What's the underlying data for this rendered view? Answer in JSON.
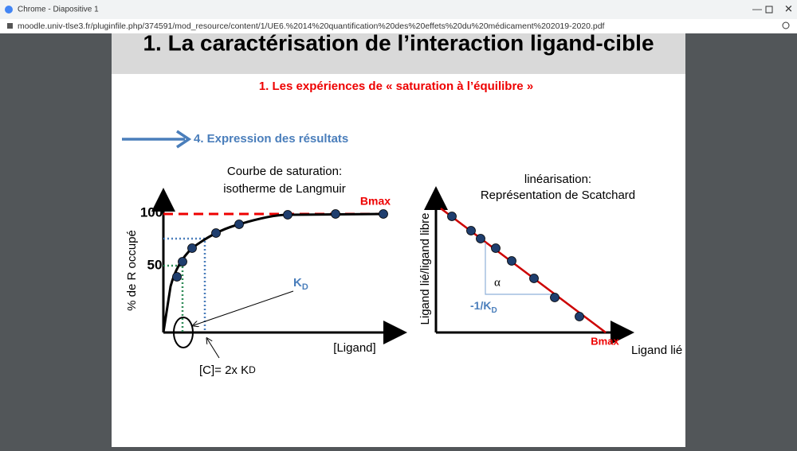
{
  "window": {
    "title": "Chrome - Diapositive 1",
    "url": "moodle.univ-tlse3.fr/pluginfile.php/374591/mod_resource/content/1/UE6.%2014%20quantification%20des%20effets%20du%20médicament%202019-2020.pdf"
  },
  "slide": {
    "title": "1. La caractérisation de l’interaction ligand-cible",
    "subtitle": "1. Les expériences de « saturation à l’équilibre »",
    "section": "4. Expression des résultats",
    "left": {
      "title_line1": "Courbe de saturation:",
      "title_line2": "isotherme de Langmuir",
      "y_label": "% de R occupé",
      "x_label": "[Ligand]",
      "tick_high": "100",
      "tick_mid": "50",
      "bmax": "Bmax",
      "kd": "K",
      "kd_sub": "D",
      "note": "[C]= 2x K",
      "note_sub": "D"
    },
    "right": {
      "title_line1": "linéarisation:",
      "title_line2": "Représentation de Scatchard",
      "y_label": "Ligand lié/ligand libre",
      "x_label": "Ligand lié",
      "alpha": "α",
      "slope": "-1/K",
      "slope_sub": "D",
      "bmax": "Bmax"
    }
  }
}
